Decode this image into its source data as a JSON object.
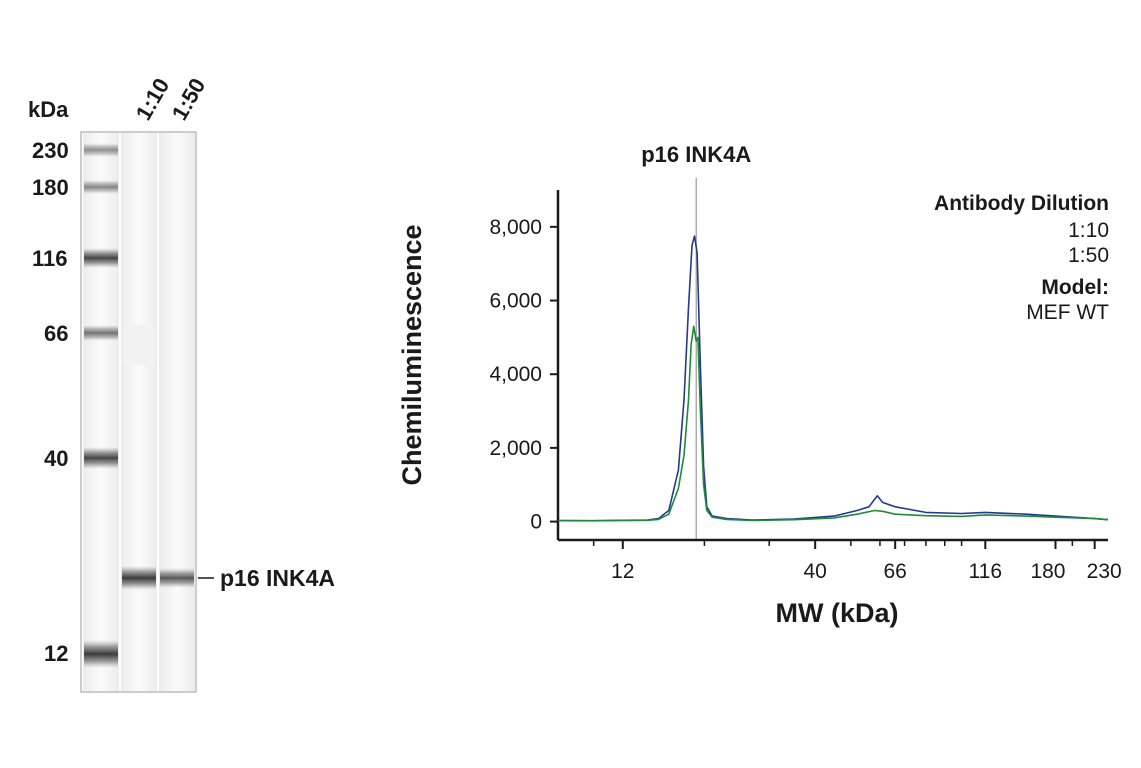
{
  "blot": {
    "unit_label": "kDa",
    "lane_labels": [
      "1:10",
      "1:50"
    ],
    "ladder_markers": [
      {
        "label": "230",
        "kda": 230
      },
      {
        "label": "180",
        "kda": 180
      },
      {
        "label": "116",
        "kda": 116
      },
      {
        "label": "66",
        "kda": 66
      },
      {
        "label": "40",
        "kda": 40
      },
      {
        "label": "12",
        "kda": 12
      }
    ],
    "band_label": "p16 INK4A",
    "sample_bands": [
      {
        "lane": "1:10",
        "relative_intensity": 1.0
      },
      {
        "lane": "1:50",
        "relative_intensity": 0.8
      }
    ]
  },
  "chart_data": {
    "type": "line",
    "title": "",
    "xlabel": "MW (kDa)",
    "ylabel": "Chemiluminescence",
    "x_scale": "log",
    "xlim": [
      8,
      250
    ],
    "ylim": [
      -500,
      9000
    ],
    "x_ticks": [
      12,
      40,
      66,
      116,
      180,
      230
    ],
    "x_tick_labels": [
      "12",
      "40",
      "66",
      "116",
      "180",
      "230"
    ],
    "y_ticks": [
      0,
      2000,
      4000,
      6000,
      8000
    ],
    "y_tick_labels": [
      "0",
      "2,000",
      "4,000",
      "6,000",
      "8,000"
    ],
    "grid": false,
    "legend": {
      "placement": "top-right",
      "title": "Antibody Dilution",
      "model_title": "Model:",
      "model_value": "MEF WT"
    },
    "annotations": [
      {
        "text": "p16 INK4A",
        "x": 19
      }
    ],
    "series": [
      {
        "name": "1:10",
        "color": "#233a8f",
        "points": [
          [
            8,
            30
          ],
          [
            10,
            25
          ],
          [
            12,
            35
          ],
          [
            14,
            40
          ],
          [
            15,
            80
          ],
          [
            16,
            300
          ],
          [
            17,
            1400
          ],
          [
            17.6,
            3300
          ],
          [
            18.1,
            5800
          ],
          [
            18.5,
            7500
          ],
          [
            18.8,
            7750
          ],
          [
            19.1,
            7300
          ],
          [
            19.5,
            4200
          ],
          [
            19.9,
            1500
          ],
          [
            20.3,
            400
          ],
          [
            21,
            150
          ],
          [
            23,
            80
          ],
          [
            27,
            40
          ],
          [
            35,
            70
          ],
          [
            45,
            150
          ],
          [
            52,
            300
          ],
          [
            56,
            400
          ],
          [
            58,
            600
          ],
          [
            59,
            700
          ],
          [
            61,
            520
          ],
          [
            66,
            400
          ],
          [
            80,
            250
          ],
          [
            100,
            220
          ],
          [
            116,
            250
          ],
          [
            150,
            200
          ],
          [
            180,
            150
          ],
          [
            230,
            80
          ],
          [
            250,
            50
          ]
        ]
      },
      {
        "name": "1:50",
        "color": "#1f8a3c",
        "points": [
          [
            8,
            25
          ],
          [
            10,
            20
          ],
          [
            12,
            30
          ],
          [
            14,
            35
          ],
          [
            15,
            60
          ],
          [
            16,
            200
          ],
          [
            17,
            900
          ],
          [
            17.6,
            1800
          ],
          [
            18.1,
            3300
          ],
          [
            18.4,
            4800
          ],
          [
            18.7,
            5300
          ],
          [
            19,
            4900
          ],
          [
            19.2,
            5000
          ],
          [
            19.5,
            3000
          ],
          [
            19.9,
            1000
          ],
          [
            20.3,
            300
          ],
          [
            21,
            120
          ],
          [
            23,
            60
          ],
          [
            27,
            30
          ],
          [
            35,
            50
          ],
          [
            45,
            100
          ],
          [
            52,
            200
          ],
          [
            58,
            300
          ],
          [
            61,
            280
          ],
          [
            66,
            200
          ],
          [
            80,
            160
          ],
          [
            100,
            140
          ],
          [
            116,
            180
          ],
          [
            150,
            150
          ],
          [
            180,
            120
          ],
          [
            230,
            80
          ],
          [
            250,
            50
          ]
        ]
      }
    ]
  }
}
